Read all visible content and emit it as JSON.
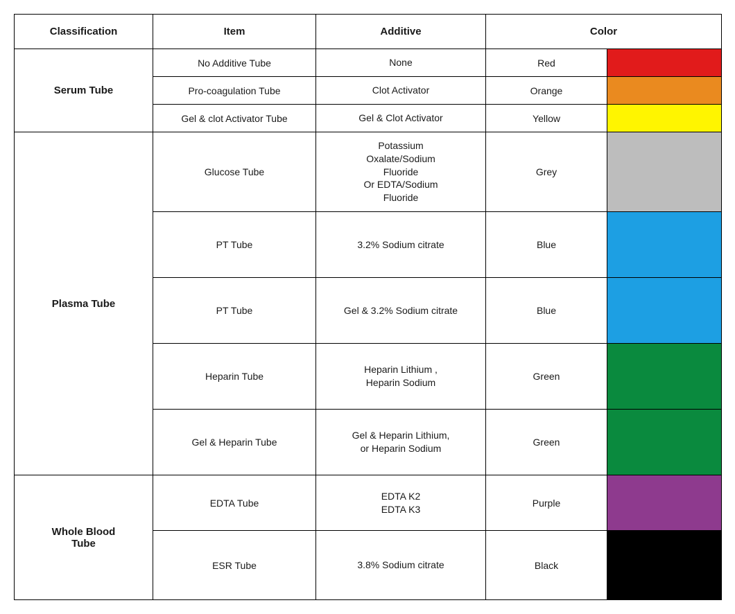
{
  "headers": {
    "classification": "Classification",
    "item": "Item",
    "additive": "Additive",
    "color": "Color"
  },
  "groups": [
    {
      "classification": "Serum Tube",
      "rows": [
        {
          "item": "No Additive Tube",
          "additive": "None",
          "colorName": "Red",
          "colorHex": "#e11b1b",
          "rowClass": "h-small"
        },
        {
          "item": "Pro-coagulation Tube",
          "additive": "Clot  Activator",
          "colorName": "Orange",
          "colorHex": "#ea8a1f",
          "rowClass": "h-small"
        },
        {
          "item": "Gel & clot Activator Tube",
          "additive": "Gel & Clot  Activator",
          "colorName": "Yellow",
          "colorHex": "#fff500",
          "rowClass": "h-small"
        }
      ]
    },
    {
      "classification": "Plasma Tube",
      "rows": [
        {
          "item": "Glucose Tube",
          "additive": "Potassium\nOxalate/Sodium\nFluoride\nOr EDTA/Sodium\nFluoride",
          "colorName": "Grey",
          "colorHex": "#bdbdbd",
          "rowClass": "h-large"
        },
        {
          "item": "PT Tube",
          "additive": "3.2% Sodium citrate",
          "colorName": "Blue",
          "colorHex": "#1d9fe3",
          "rowClass": "h-medium"
        },
        {
          "item": "PT Tube",
          "additive": "Gel & 3.2% Sodium citrate",
          "colorName": "Blue",
          "colorHex": "#1d9fe3",
          "rowClass": "h-medium"
        },
        {
          "item": "Heparin  Tube",
          "additive": "Heparin Lithium ,\nHeparin Sodium",
          "colorName": "Green",
          "colorHex": "#0a8a3e",
          "rowClass": "h-medium"
        },
        {
          "item": "Gel & Heparin  Tube",
          "additive": "Gel &  Heparin Lithium,\nor Heparin Sodium",
          "colorName": "Green",
          "colorHex": "#0a8a3e",
          "rowClass": "h-medium"
        }
      ]
    },
    {
      "classification": "Whole Blood\nTube",
      "rows": [
        {
          "item": "EDTA Tube",
          "additive": "EDTA  K2\nEDTA  K3",
          "colorName": "Purple",
          "colorHex": "#8e3a8e",
          "rowClass": "h-xl"
        },
        {
          "item": "ESR Tube",
          "additive": "3.8% Sodium citrate",
          "colorName": "Black",
          "colorHex": "#000000",
          "rowClass": "h-esr"
        }
      ]
    }
  ],
  "columnWidths": {
    "classification": "200px",
    "item": "235px",
    "additive": "245px",
    "colorName": "175px",
    "swatch": "165px"
  },
  "styling": {
    "borderColor": "#000000",
    "background": "#ffffff",
    "textColor": "#1a1a1a",
    "headerFontSize": 15,
    "cellFontSize": 14,
    "fontFamily": "Arial"
  }
}
